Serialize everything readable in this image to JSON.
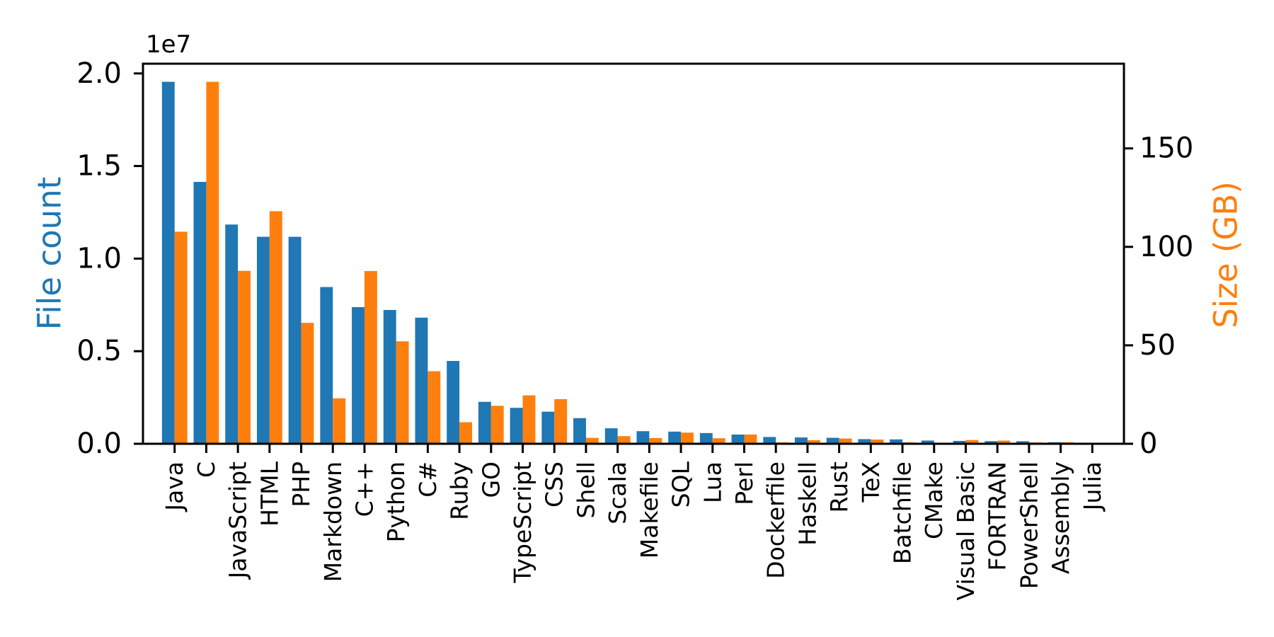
{
  "figure": {
    "background": "#ffffff",
    "title": ""
  },
  "chart_data": {
    "type": "bar",
    "title": "",
    "categories": [
      "Java",
      "C",
      "JavaScript",
      "HTML",
      "PHP",
      "Markdown",
      "C++",
      "Python",
      "C#",
      "Ruby",
      "GO",
      "TypeScript",
      "CSS",
      "Shell",
      "Scala",
      "Makefile",
      "SQL",
      "Lua",
      "Perl",
      "Dockerfile",
      "Haskell",
      "Rust",
      "TeX",
      "Batchfile",
      "CMake",
      "Visual Basic",
      "FORTRAN",
      "PowerShell",
      "Assembly",
      "Julia"
    ],
    "series": [
      {
        "name": "File count",
        "axis": "left",
        "color": "#1f77b4",
        "values": [
          19548190,
          14143113,
          11839883,
          11178557,
          11177610,
          8464626,
          7380520,
          7226626,
          6811652,
          4473331,
          2265436,
          1940406,
          1734406,
          1385648,
          835755,
          679430,
          656671,
          578554,
          497949,
          366505,
          340623,
          322431,
          251015,
          236945,
          175282,
          155652,
          142038,
          136846,
          82905,
          58317
        ]
      },
      {
        "name": "Size (GB)",
        "axis": "right",
        "color": "#ff7f0e",
        "values": [
          107.7,
          183.83,
          87.82,
          118.12,
          61.41,
          23.09,
          87.73,
          52.03,
          36.83,
          10.95,
          19.28,
          24.59,
          22.67,
          3.01,
          3.87,
          2.92,
          5.67,
          2.81,
          4.7,
          0.71,
          1.85,
          2.68,
          2.15,
          0.7,
          0.54,
          1.91,
          1.62,
          0.69,
          0.78,
          0.29
        ]
      }
    ],
    "left_axis": {
      "label": "File count",
      "label_color": "#1f77b4",
      "offset_label": "1e7",
      "tick_labels": [
        "0.0",
        "0.5",
        "1.0",
        "1.5",
        "2.0"
      ],
      "tick_values": [
        0,
        5000000,
        10000000,
        15000000,
        20000000
      ],
      "ylim": [
        0,
        20525600
      ]
    },
    "right_axis": {
      "label": "Size (GB)",
      "label_color": "#ff7f0e",
      "tick_labels": [
        "0",
        "50",
        "100",
        "150"
      ],
      "tick_values": [
        0,
        50,
        100,
        150
      ],
      "ylim": [
        0,
        193.02
      ]
    },
    "axis_color": "#000000",
    "tick_label_color": "#000000",
    "x_tick_label_rotation_deg": 90,
    "grid": false,
    "legend": "none"
  }
}
